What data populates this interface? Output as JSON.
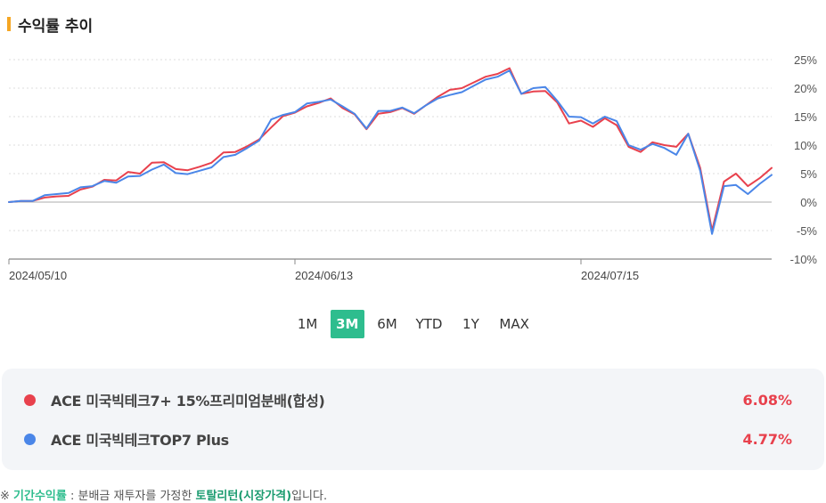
{
  "header": {
    "title": "수익률 추이"
  },
  "colors": {
    "accent_bar": "#f5a623",
    "series1": "#e8414d",
    "series2": "#4a86e8",
    "active_button": "#2ebd8e"
  },
  "periods": [
    {
      "label": "1M",
      "active": false
    },
    {
      "label": "3M",
      "active": true
    },
    {
      "label": "6M",
      "active": false
    },
    {
      "label": "YTD",
      "active": false
    },
    {
      "label": "1Y",
      "active": false
    },
    {
      "label": "MAX",
      "active": false
    }
  ],
  "legend": [
    {
      "name": "ACE 미국빅테크7+ 15%프리미엄분배(합성)",
      "value": "6.08%",
      "color": "#e8414d"
    },
    {
      "name": "ACE 미국빅테크TOP7 Plus",
      "value": "4.77%",
      "color": "#4a86e8"
    }
  ],
  "footnote": {
    "prefix": "※ ",
    "term": "기간수익률",
    "middle": " : 분배금 재투자를 가정한 ",
    "emph": "토탈리턴(시장가격)",
    "suffix": "입니다."
  },
  "chart_data": {
    "type": "line",
    "x_tick_labels": [
      "2024/05/10",
      "2024/06/13",
      "2024/07/15"
    ],
    "x_tick_index": [
      0,
      24,
      48
    ],
    "y_ticks": [
      25,
      20,
      15,
      10,
      5,
      0,
      -5,
      -10
    ],
    "y_tick_labels": [
      "25%",
      "20%",
      "15%",
      "10%",
      "5%",
      "0%",
      "-5%",
      "-10%"
    ],
    "ylim": [
      -10,
      25
    ],
    "grid": true,
    "series": [
      {
        "name": "ACE 미국빅테크7+ 15%프리미엄분배(합성)",
        "color": "#e8414d",
        "values": [
          0.0,
          0.2,
          0.2,
          0.8,
          1.0,
          1.1,
          2.2,
          2.7,
          3.9,
          3.8,
          5.3,
          5.0,
          6.9,
          7.0,
          5.8,
          5.6,
          6.2,
          6.9,
          8.7,
          8.8,
          9.8,
          11.0,
          13.1,
          15.1,
          15.7,
          16.8,
          17.4,
          18.2,
          16.5,
          15.4,
          12.8,
          15.5,
          15.8,
          16.5,
          15.5,
          17.0,
          18.5,
          19.7,
          20.0,
          21.0,
          22.0,
          22.5,
          23.5,
          19.0,
          19.4,
          19.5,
          17.5,
          13.8,
          14.3,
          13.2,
          14.7,
          13.5,
          9.7,
          8.8,
          10.5,
          10.0,
          9.7,
          12.0,
          6.0,
          -5.0,
          3.6,
          5.0,
          2.8,
          4.2,
          6.0
        ]
      },
      {
        "name": "ACE 미국빅테크TOP7 Plus",
        "color": "#4a86e8",
        "values": [
          0.0,
          0.2,
          0.2,
          1.2,
          1.4,
          1.6,
          2.6,
          2.8,
          3.7,
          3.4,
          4.5,
          4.6,
          5.7,
          6.6,
          5.1,
          4.9,
          5.5,
          6.1,
          7.9,
          8.3,
          9.5,
          10.8,
          14.5,
          15.3,
          15.8,
          17.3,
          17.6,
          18.0,
          16.8,
          15.5,
          12.9,
          16.0,
          16.0,
          16.6,
          15.6,
          17.0,
          18.2,
          18.8,
          19.3,
          20.4,
          21.5,
          22.0,
          23.1,
          19.0,
          20.0,
          20.2,
          17.8,
          15.0,
          14.9,
          13.8,
          15.0,
          14.2,
          10.0,
          9.2,
          10.2,
          9.5,
          8.3,
          12.0,
          5.5,
          -5.6,
          2.8,
          3.0,
          1.4,
          3.2,
          4.77
        ]
      }
    ]
  }
}
